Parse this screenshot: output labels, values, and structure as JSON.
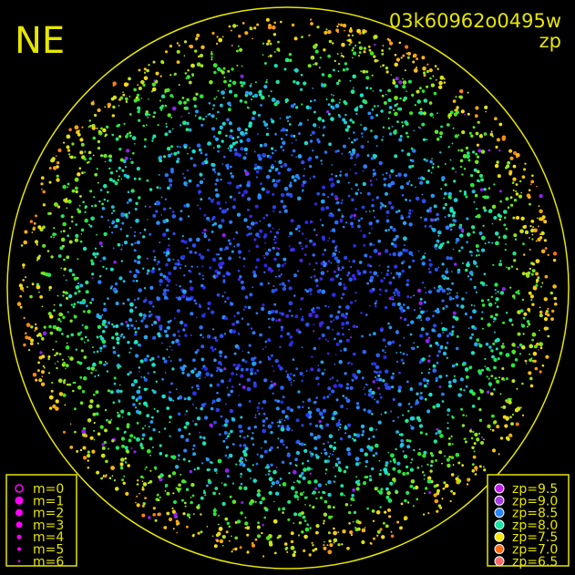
{
  "chart_data": {
    "type": "scatter",
    "title": "03k60962o0495w",
    "subtitle": "zp",
    "corner_label": "NE",
    "accent_color": "#e6e600",
    "magnitude_legend": [
      {
        "label": "m=0",
        "open": true
      },
      {
        "label": "m=1"
      },
      {
        "label": "m=2"
      },
      {
        "label": "m=3"
      },
      {
        "label": "m=4"
      },
      {
        "label": "m=5"
      },
      {
        "label": "m=6"
      }
    ],
    "zp_legend": [
      {
        "label": "zp=9.5",
        "value": 9.5,
        "color": "#c21ef0"
      },
      {
        "label": "zp=9.0",
        "value": 9.0,
        "color": "#a43ce0"
      },
      {
        "label": "zp=8.5",
        "value": 8.5,
        "color": "#2a86ff"
      },
      {
        "label": "zp=8.0",
        "value": 8.0,
        "color": "#18e6a0"
      },
      {
        "label": "zp=7.5",
        "value": 7.5,
        "color": "#f6e410"
      },
      {
        "label": "zp=7.0",
        "value": 7.0,
        "color": "#ff6a14"
      },
      {
        "label": "zp=6.5",
        "value": 6.5,
        "color": "#ff6a6a"
      }
    ],
    "magnitude_color": "#ff00ff",
    "grid": false
  }
}
